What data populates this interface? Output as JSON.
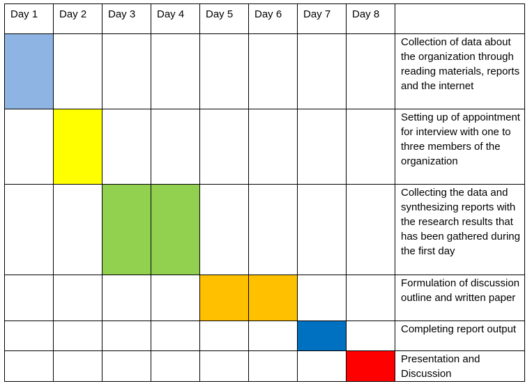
{
  "days": [
    "Day 1",
    "Day 2",
    "Day 3",
    "Day 4",
    "Day 5",
    "Day 6",
    "Day 7",
    "Day 8"
  ],
  "header_task_label": "",
  "tasks": [
    {
      "label": "Collection of data about the organization through reading materials, reports and the internet",
      "start_day": 1,
      "end_day": 1,
      "color": "#8EB4E3"
    },
    {
      "label": "Setting up of appointment for interview with one to three members of the organization",
      "start_day": 2,
      "end_day": 2,
      "color": "#FFFF00"
    },
    {
      "label": "Collecting the data and synthesizing reports with the research results that has been gathered during the first day",
      "start_day": 3,
      "end_day": 4,
      "color": "#92D050"
    },
    {
      "label": "Formulation of discussion outline and written paper",
      "start_day": 5,
      "end_day": 6,
      "color": "#FFC000"
    },
    {
      "label": "Completing report output",
      "start_day": 7,
      "end_day": 7,
      "color": "#0070C0"
    },
    {
      "label": "Presentation and Discussion",
      "start_day": 8,
      "end_day": 8,
      "color": "#FF0000"
    }
  ]
}
